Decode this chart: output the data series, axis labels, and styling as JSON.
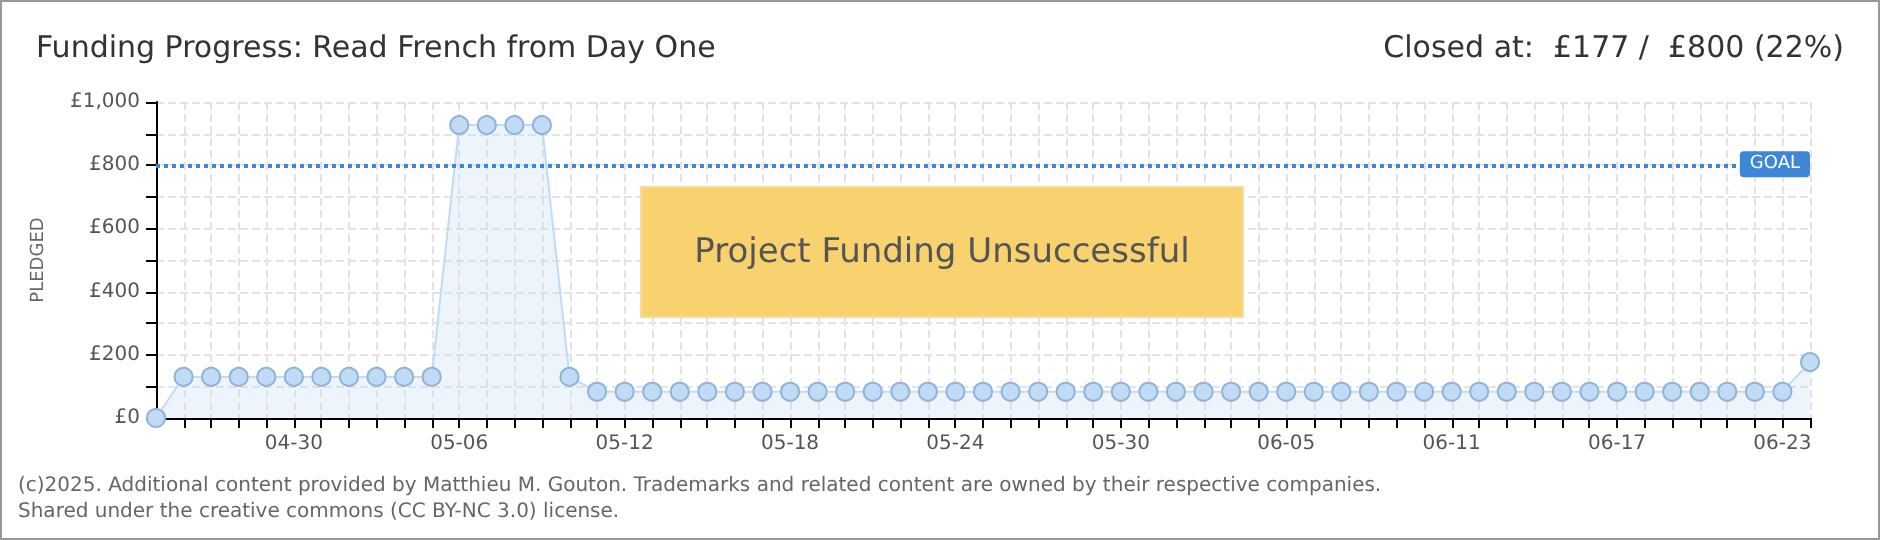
{
  "chart_data": {
    "type": "area",
    "title": "Funding Progress: Read French from Day One",
    "subtitle": "Closed at:  £177 /  £800 (22%)",
    "ylabel": "PLEDGED",
    "annotations": [
      "Project Funding Unsuccessful",
      "(c)2025. Additional content provided by Matthieu M. Gouton. Trademarks and related content are owned by their respective companies.",
      "Shared under the creative commons (CC BY-NC 3.0) license."
    ],
    "x": [
      "--04-25",
      "--04-26",
      "--04-27",
      "--04-28",
      "--04-29",
      "--04-30",
      "--05-01",
      "--05-02",
      "--05-03",
      "--05-04",
      "--05-05",
      "--05-06",
      "--05-07",
      "--05-08",
      "--05-09",
      "--05-10",
      "--05-11",
      "--05-12",
      "--05-13",
      "--05-14",
      "--05-15",
      "--05-16",
      "--05-17",
      "--05-18",
      "--05-19",
      "--05-20",
      "--05-21",
      "--05-22",
      "--05-23",
      "--05-24",
      "--05-25",
      "--05-26",
      "--05-27",
      "--05-28",
      "--05-29",
      "--05-30",
      "--05-31",
      "--06-01",
      "--06-02",
      "--06-03",
      "--06-04",
      "--06-05",
      "--06-06",
      "--06-07",
      "--06-08",
      "--06-09",
      "--06-10",
      "--06-11",
      "--06-12",
      "--06-13",
      "--06-14",
      "--06-15",
      "--06-16",
      "--06-17",
      "--06-18",
      "--06-19",
      "--06-20",
      "--06-21",
      "--06-22",
      "--06-23",
      "--06-24"
    ],
    "series": [
      {
        "color": "#c2dbf5",
        "values": [
          0,
          130,
          130,
          130,
          130,
          130,
          130,
          130,
          130,
          130,
          130,
          927,
          927,
          927,
          927,
          130,
          83,
          83,
          83,
          83,
          83,
          83,
          83,
          83,
          83,
          83,
          83,
          83,
          83,
          83,
          83,
          83,
          83,
          83,
          83,
          83,
          83,
          83,
          83,
          83,
          83,
          83,
          83,
          83,
          83,
          83,
          83,
          83,
          83,
          83,
          83,
          83,
          83,
          83,
          83,
          83,
          83,
          83,
          83,
          83,
          177
        ]
      }
    ],
    "xlim": [
      "--04-25",
      "--06-24"
    ],
    "xticks": [
      {
        "value": "--04-26",
        "label": null
      },
      {
        "value": "--04-27",
        "label": null
      },
      {
        "value": "--04-28",
        "label": null
      },
      {
        "value": "--04-29",
        "label": null
      },
      {
        "value": "--04-30",
        "label": "04-30"
      },
      {
        "value": "--05-01",
        "label": null
      },
      {
        "value": "--05-02",
        "label": null
      },
      {
        "value": "--05-03",
        "label": null
      },
      {
        "value": "--05-04",
        "label": null
      },
      {
        "value": "--05-05",
        "label": null
      },
      {
        "value": "--05-06",
        "label": "05-06"
      },
      {
        "value": "--05-07",
        "label": null
      },
      {
        "value": "--05-08",
        "label": null
      },
      {
        "value": "--05-09",
        "label": null
      },
      {
        "value": "--05-10",
        "label": null
      },
      {
        "value": "--05-11",
        "label": null
      },
      {
        "value": "--05-12",
        "label": "05-12"
      },
      {
        "value": "--05-13",
        "label": null
      },
      {
        "value": "--05-14",
        "label": null
      },
      {
        "value": "--05-15",
        "label": null
      },
      {
        "value": "--05-16",
        "label": null
      },
      {
        "value": "--05-17",
        "label": null
      },
      {
        "value": "--05-18",
        "label": "05-18"
      },
      {
        "value": "--05-19",
        "label": null
      },
      {
        "value": "--05-20",
        "label": null
      },
      {
        "value": "--05-21",
        "label": null
      },
      {
        "value": "--05-22",
        "label": null
      },
      {
        "value": "--05-23",
        "label": null
      },
      {
        "value": "--05-24",
        "label": "05-24"
      },
      {
        "value": "--05-25",
        "label": null
      },
      {
        "value": "--05-26",
        "label": null
      },
      {
        "value": "--05-27",
        "label": null
      },
      {
        "value": "--05-28",
        "label": null
      },
      {
        "value": "--05-29",
        "label": null
      },
      {
        "value": "--05-30",
        "label": "05-30"
      },
      {
        "value": "--05-31",
        "label": null
      },
      {
        "value": "--06-01",
        "label": null
      },
      {
        "value": "--06-02",
        "label": null
      },
      {
        "value": "--06-03",
        "label": null
      },
      {
        "value": "--06-04",
        "label": null
      },
      {
        "value": "--06-05",
        "label": "06-05"
      },
      {
        "value": "--06-06",
        "label": null
      },
      {
        "value": "--06-07",
        "label": null
      },
      {
        "value": "--06-08",
        "label": null
      },
      {
        "value": "--06-09",
        "label": null
      },
      {
        "value": "--06-10",
        "label": null
      },
      {
        "value": "--06-11",
        "label": "06-11"
      },
      {
        "value": "--06-12",
        "label": null
      },
      {
        "value": "--06-13",
        "label": null
      },
      {
        "value": "--06-14",
        "label": null
      },
      {
        "value": "--06-15",
        "label": null
      },
      {
        "value": "--06-16",
        "label": null
      },
      {
        "value": "--06-17",
        "label": "06-17"
      },
      {
        "value": "--06-18",
        "label": null
      },
      {
        "value": "--06-19",
        "label": null
      },
      {
        "value": "--06-20",
        "label": null
      },
      {
        "value": "--06-21",
        "label": null
      },
      {
        "value": "--06-22",
        "label": null
      },
      {
        "value": "--06-23",
        "label": "06-23"
      },
      {
        "value": "--06-24",
        "label": null
      }
    ],
    "ylim": [
      0,
      1000
    ],
    "yticks": [
      {
        "value": 0,
        "label": "£0"
      },
      {
        "value": 100,
        "label": null
      },
      {
        "value": 200,
        "label": "£200"
      },
      {
        "value": 300,
        "label": null
      },
      {
        "value": 400,
        "label": "£400"
      },
      {
        "value": 500,
        "label": null
      },
      {
        "value": 600,
        "label": "£600"
      },
      {
        "value": 700,
        "label": null
      },
      {
        "value": 800,
        "label": "£800"
      },
      {
        "value": 900,
        "label": null
      },
      {
        "value": 1000,
        "label": "£1,000"
      }
    ],
    "ref_lines": [
      {
        "axis": "y",
        "value": 800,
        "label": "GOAL",
        "color": "#3d87d6",
        "line_style": "dotted"
      }
    ],
    "grid": true,
    "marker": "circle"
  }
}
